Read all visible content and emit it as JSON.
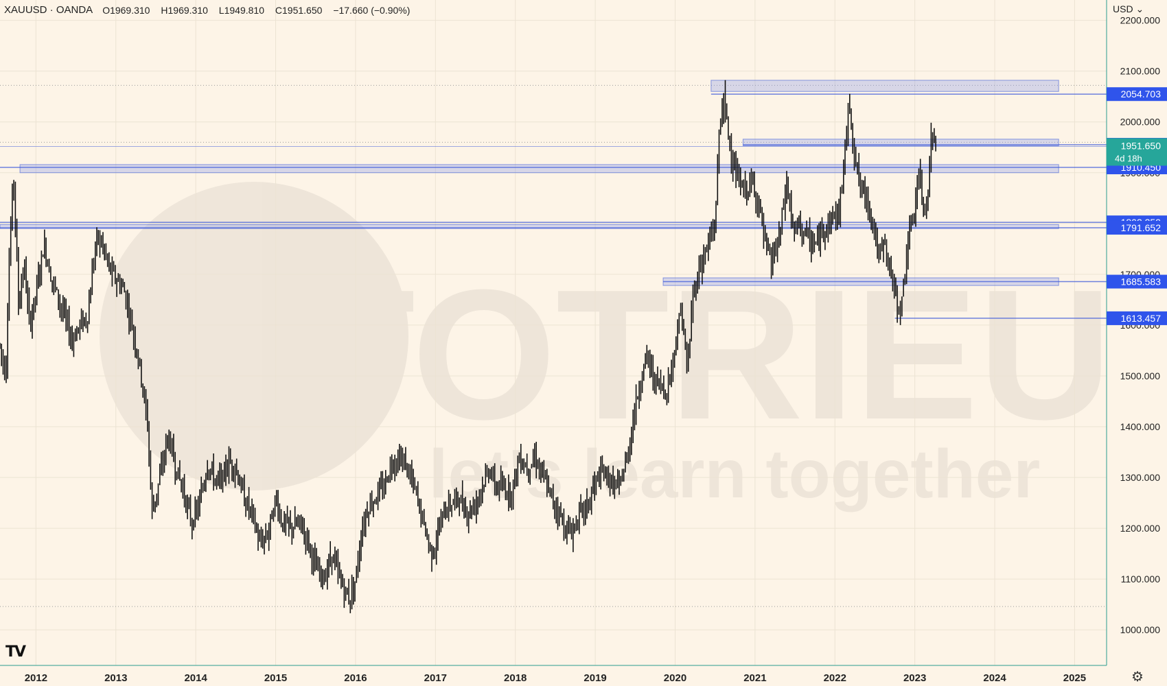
{
  "header": {
    "symbol": "XAUUSD · OANDA",
    "open": "1969.310",
    "high": "1969.310",
    "low": "1949.810",
    "close": "1951.650",
    "change": "−17.660 (−0.90%)"
  },
  "currency_selector": "USD ⌄",
  "watermark": {
    "brand": "TOTRIEU",
    "tagline": "let's learn together"
  },
  "logo_text": "TV",
  "settings_icon": "gear-icon",
  "colors": {
    "background": "#fdf4e7",
    "zone_fill": "#8f9fe8",
    "zone_line": "#3d5bd9",
    "price_label": "#2f54eb",
    "current_price": "#26a69a",
    "candle": "#111111"
  },
  "chart_data": {
    "type": "candlestick",
    "symbol": "XAUUSD",
    "ylim": [
      930,
      2240
    ],
    "xlim": [
      2011.55,
      2025.4
    ],
    "y_ticks": [
      {
        "value": 2200,
        "label": "2200.000"
      },
      {
        "value": 2100,
        "label": "2100.000"
      },
      {
        "value": 2000,
        "label": "2000.000"
      },
      {
        "value": 1900,
        "label": "1900.000"
      },
      {
        "value": 1800,
        "label": "1800.000"
      },
      {
        "value": 1700,
        "label": "1700.000"
      },
      {
        "value": 1600,
        "label": "1600.000"
      },
      {
        "value": 1500,
        "label": "1500.000"
      },
      {
        "value": 1400,
        "label": "1400.000"
      },
      {
        "value": 1300,
        "label": "1300.000"
      },
      {
        "value": 1200,
        "label": "1200.000"
      },
      {
        "value": 1100,
        "label": "1100.000"
      },
      {
        "value": 1000,
        "label": "1000.000"
      }
    ],
    "x_ticks": [
      {
        "value": 2012,
        "label": "2012"
      },
      {
        "value": 2013,
        "label": "2013"
      },
      {
        "value": 2014,
        "label": "2014"
      },
      {
        "value": 2015,
        "label": "2015"
      },
      {
        "value": 2016,
        "label": "2016"
      },
      {
        "value": 2017,
        "label": "2017"
      },
      {
        "value": 2018,
        "label": "2018"
      },
      {
        "value": 2019,
        "label": "2019"
      },
      {
        "value": 2020,
        "label": "2020"
      },
      {
        "value": 2021,
        "label": "2021"
      },
      {
        "value": 2022,
        "label": "2022"
      },
      {
        "value": 2023,
        "label": "2023"
      },
      {
        "value": 2024,
        "label": "2024"
      },
      {
        "value": 2025,
        "label": "2025"
      }
    ],
    "dotted_levels": [
      2072,
      1960,
      1046
    ],
    "price_path": [
      [
        2011.55,
        1560
      ],
      [
        2011.62,
        1500
      ],
      [
        2011.67,
        1750
      ],
      [
        2011.72,
        1900
      ],
      [
        2011.78,
        1640
      ],
      [
        2011.85,
        1720
      ],
      [
        2011.92,
        1600
      ],
      [
        2012.0,
        1660
      ],
      [
        2012.1,
        1760
      ],
      [
        2012.2,
        1690
      ],
      [
        2012.35,
        1620
      ],
      [
        2012.45,
        1570
      ],
      [
        2012.55,
        1600
      ],
      [
        2012.65,
        1620
      ],
      [
        2012.75,
        1770
      ],
      [
        2012.83,
        1760
      ],
      [
        2012.92,
        1710
      ],
      [
        2013.0,
        1690
      ],
      [
        2013.1,
        1670
      ],
      [
        2013.2,
        1600
      ],
      [
        2013.3,
        1520
      ],
      [
        2013.4,
        1400
      ],
      [
        2013.45,
        1230
      ],
      [
        2013.55,
        1300
      ],
      [
        2013.65,
        1380
      ],
      [
        2013.75,
        1320
      ],
      [
        2013.85,
        1270
      ],
      [
        2013.95,
        1210
      ],
      [
        2014.05,
        1250
      ],
      [
        2014.15,
        1330
      ],
      [
        2014.22,
        1300
      ],
      [
        2014.3,
        1290
      ],
      [
        2014.42,
        1330
      ],
      [
        2014.5,
        1320
      ],
      [
        2014.6,
        1260
      ],
      [
        2014.7,
        1230
      ],
      [
        2014.8,
        1170
      ],
      [
        2014.9,
        1190
      ],
      [
        2015.0,
        1260
      ],
      [
        2015.08,
        1210
      ],
      [
        2015.2,
        1200
      ],
      [
        2015.3,
        1210
      ],
      [
        2015.4,
        1180
      ],
      [
        2015.5,
        1120
      ],
      [
        2015.6,
        1100
      ],
      [
        2015.7,
        1150
      ],
      [
        2015.8,
        1100
      ],
      [
        2015.92,
        1060
      ],
      [
        2016.0,
        1100
      ],
      [
        2016.08,
        1200
      ],
      [
        2016.15,
        1240
      ],
      [
        2016.25,
        1260
      ],
      [
        2016.35,
        1280
      ],
      [
        2016.45,
        1330
      ],
      [
        2016.55,
        1340
      ],
      [
        2016.65,
        1320
      ],
      [
        2016.75,
        1270
      ],
      [
        2016.85,
        1210
      ],
      [
        2016.95,
        1150
      ],
      [
        2017.0,
        1170
      ],
      [
        2017.1,
        1230
      ],
      [
        2017.2,
        1250
      ],
      [
        2017.3,
        1260
      ],
      [
        2017.4,
        1230
      ],
      [
        2017.5,
        1250
      ],
      [
        2017.6,
        1290
      ],
      [
        2017.68,
        1320
      ],
      [
        2017.75,
        1280
      ],
      [
        2017.85,
        1280
      ],
      [
        2017.95,
        1270
      ],
      [
        2018.05,
        1340
      ],
      [
        2018.15,
        1320
      ],
      [
        2018.25,
        1340
      ],
      [
        2018.35,
        1300
      ],
      [
        2018.45,
        1260
      ],
      [
        2018.55,
        1230
      ],
      [
        2018.62,
        1200
      ],
      [
        2018.7,
        1190
      ],
      [
        2018.8,
        1230
      ],
      [
        2018.9,
        1240
      ],
      [
        2019.0,
        1290
      ],
      [
        2019.1,
        1310
      ],
      [
        2019.2,
        1290
      ],
      [
        2019.3,
        1280
      ],
      [
        2019.4,
        1340
      ],
      [
        2019.48,
        1420
      ],
      [
        2019.58,
        1500
      ],
      [
        2019.65,
        1540
      ],
      [
        2019.72,
        1500
      ],
      [
        2019.8,
        1480
      ],
      [
        2019.9,
        1470
      ],
      [
        2020.0,
        1560
      ],
      [
        2020.08,
        1640
      ],
      [
        2020.15,
        1500
      ],
      [
        2020.22,
        1660
      ],
      [
        2020.32,
        1720
      ],
      [
        2020.42,
        1760
      ],
      [
        2020.5,
        1800
      ],
      [
        2020.55,
        1980
      ],
      [
        2020.6,
        2050
      ],
      [
        2020.68,
        1960
      ],
      [
        2020.75,
        1900
      ],
      [
        2020.85,
        1860
      ],
      [
        2020.95,
        1880
      ],
      [
        2021.05,
        1840
      ],
      [
        2021.12,
        1760
      ],
      [
        2021.2,
        1720
      ],
      [
        2021.3,
        1770
      ],
      [
        2021.4,
        1880
      ],
      [
        2021.48,
        1780
      ],
      [
        2021.55,
        1800
      ],
      [
        2021.62,
        1780
      ],
      [
        2021.7,
        1760
      ],
      [
        2021.78,
        1760
      ],
      [
        2021.85,
        1790
      ],
      [
        2021.95,
        1810
      ],
      [
        2022.05,
        1820
      ],
      [
        2022.1,
        1900
      ],
      [
        2022.18,
        2040
      ],
      [
        2022.25,
        1930
      ],
      [
        2022.32,
        1870
      ],
      [
        2022.4,
        1850
      ],
      [
        2022.48,
        1800
      ],
      [
        2022.55,
        1730
      ],
      [
        2022.62,
        1760
      ],
      [
        2022.7,
        1700
      ],
      [
        2022.78,
        1640
      ],
      [
        2022.83,
        1630
      ],
      [
        2022.9,
        1750
      ],
      [
        2022.98,
        1810
      ],
      [
        2023.05,
        1900
      ],
      [
        2023.1,
        1830
      ],
      [
        2023.15,
        1840
      ],
      [
        2023.2,
        1960
      ],
      [
        2023.25,
        1975
      ],
      [
        2023.28,
        1952
      ]
    ],
    "zones": [
      {
        "label": "2054.703",
        "level": 2054.703,
        "top": 2082,
        "bottom": 2060,
        "x_start": 2020.45,
        "x_end": 2024.8,
        "line_x_start": 2020.45
      },
      {
        "label": "1954.999",
        "level": 1954.999,
        "top": 1966,
        "bottom": 1953,
        "x_start": 2020.85,
        "x_end": 2024.8,
        "line_x_start": 2020.85
      },
      {
        "label": "1910.450",
        "level": 1910.45,
        "top": 1916,
        "bottom": 1900,
        "x_start": 2011.8,
        "x_end": 2024.8,
        "line_x_start": 2011.55
      },
      {
        "label": "1802.259",
        "level": 1802.259,
        "top": 1798,
        "bottom": 1790,
        "x_start": 2011.55,
        "x_end": 2024.8,
        "line_x_start": 2011.55
      },
      {
        "label": "1791.652",
        "level": 1791.652,
        "top": 1794,
        "bottom": 1790,
        "x_start": 2011.55,
        "x_end": 2011.55,
        "line_x_start": 2011.55
      },
      {
        "label": "1685.583",
        "level": 1685.583,
        "top": 1693,
        "bottom": 1678,
        "x_start": 2019.85,
        "x_end": 2024.8,
        "line_x_start": 2019.85
      },
      {
        "label": "1613.457",
        "level": 1613.457,
        "top": 1613.457,
        "bottom": 1613.457,
        "x_start": 2022.75,
        "x_end": 2022.75,
        "line_x_start": 2022.75
      }
    ],
    "current_price": {
      "value": 1951.65,
      "label": "1951.650",
      "countdown": "4d 18h"
    }
  }
}
